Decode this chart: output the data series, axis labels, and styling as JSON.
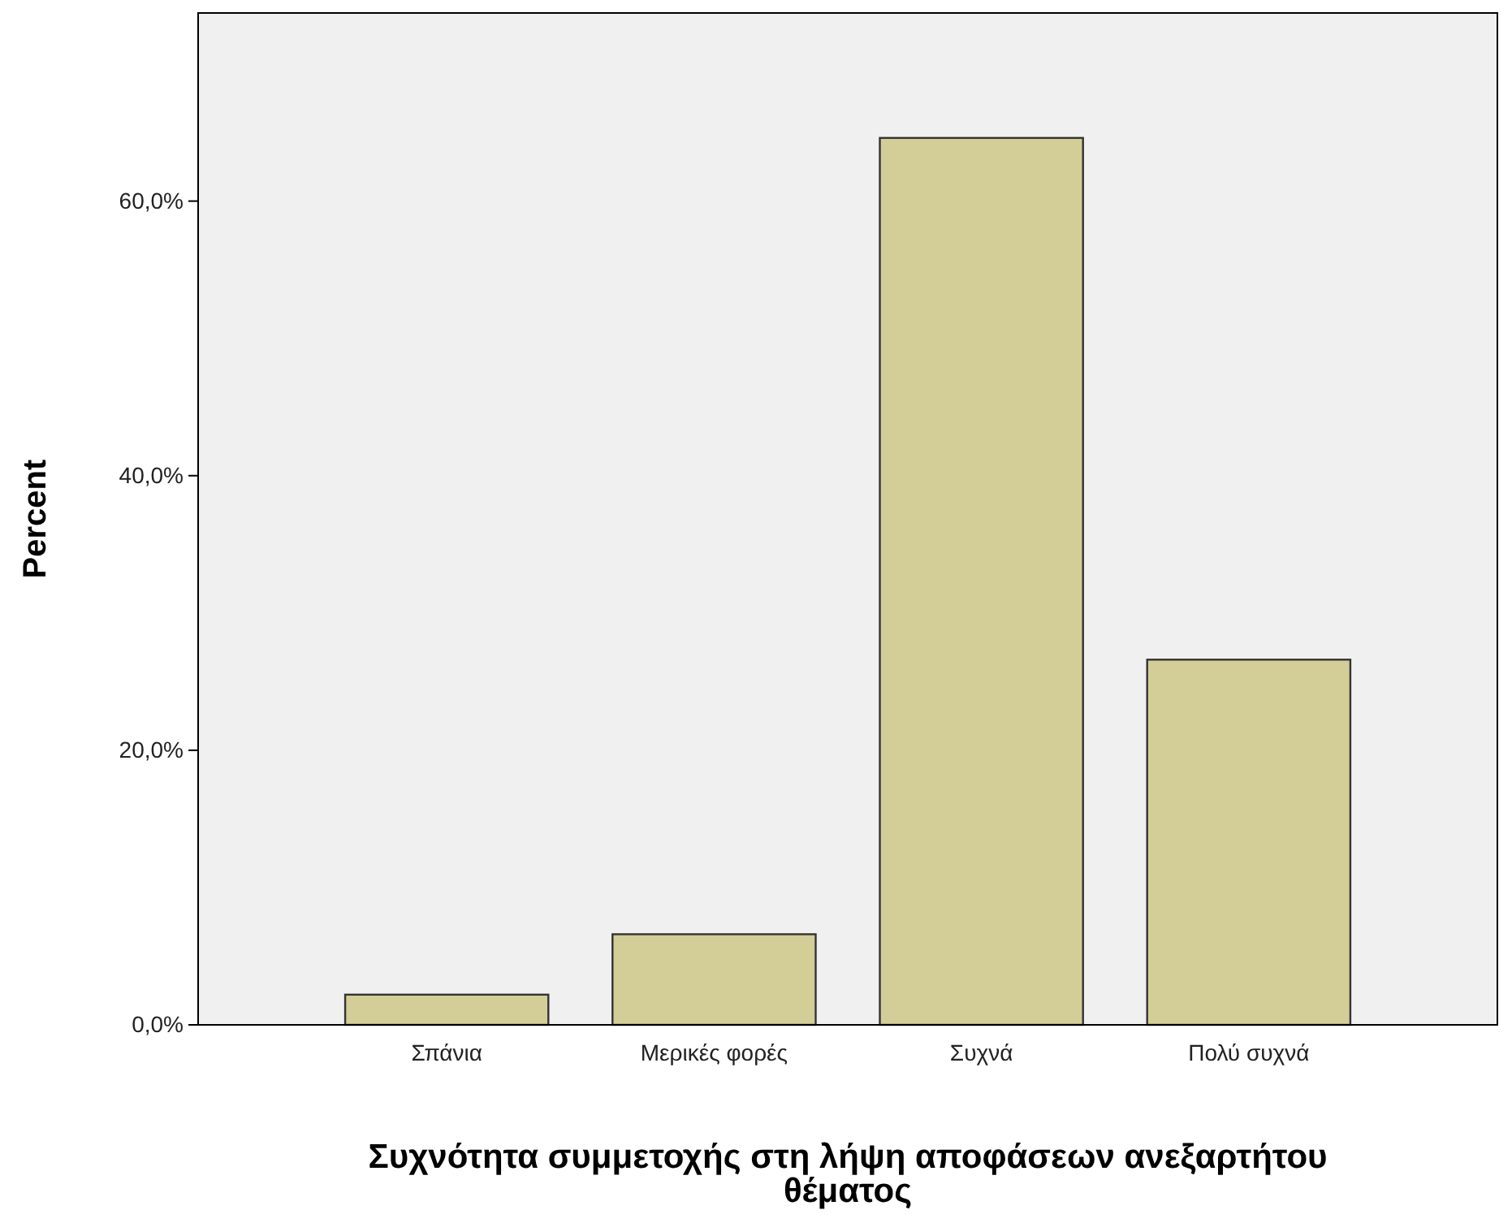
{
  "chart_data": {
    "type": "bar",
    "categories": [
      "Σπάνια",
      "Μερικές φορές",
      "Συχνά",
      "Πολύ συχνά"
    ],
    "values": [
      2.2,
      6.6,
      64.6,
      26.6
    ],
    "color": "#d3ce97",
    "xlabel": "Συχνότητα συμμετοχής στη λήψη αποφάσεων ανεξαρτήτου θέματος",
    "ylabel": "Percent",
    "ylim": [
      0,
      73.7
    ],
    "yticks": [
      {
        "value": 0,
        "label": "0,0%"
      },
      {
        "value": 20,
        "label": "20,0%"
      },
      {
        "value": 40,
        "label": "40,0%"
      },
      {
        "value": 60,
        "label": "60,0%"
      }
    ],
    "grid": false
  }
}
